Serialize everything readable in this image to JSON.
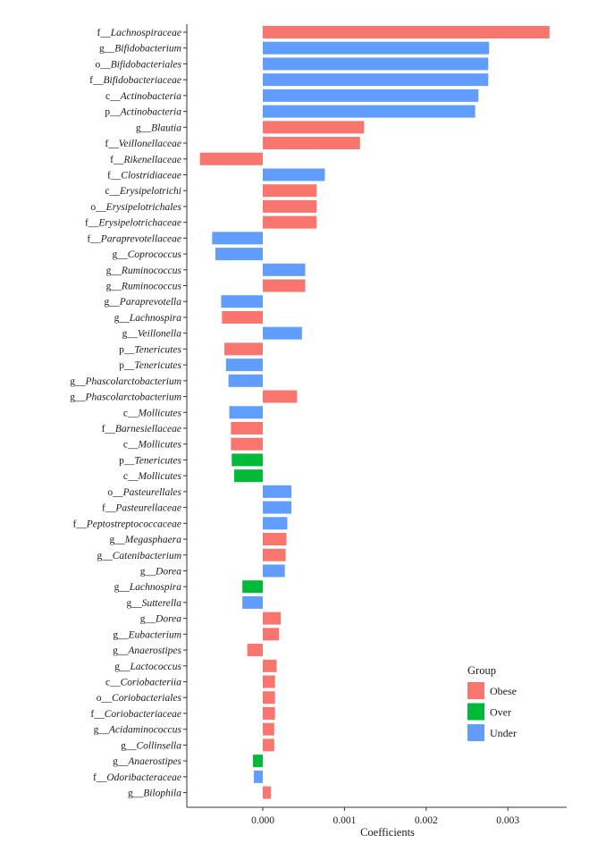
{
  "chart_data": {
    "type": "bar",
    "orientation": "horizontal",
    "xlabel": "Coefficients",
    "xlim": [
      -0.00093,
      0.00372
    ],
    "x_ticks": [
      0.0,
      0.001,
      0.002,
      0.003
    ],
    "x_tick_labels": [
      "0.000",
      "0.001",
      "0.002",
      "0.003"
    ],
    "colors": {
      "Obese": "#f8766d",
      "Over": "#00ba38",
      "Under": "#619cff"
    },
    "legend": {
      "title": "Group",
      "position": "right",
      "entries": [
        {
          "group": "Obese",
          "label": "Obese"
        },
        {
          "group": "Over",
          "label": "Over"
        },
        {
          "group": "Under",
          "label": "Under"
        }
      ]
    },
    "bars": [
      {
        "prefix": "f",
        "taxon": "Lachnospiraceae",
        "value": 0.00351,
        "group": "Obese"
      },
      {
        "prefix": "g",
        "taxon": "Bifidobacterium",
        "value": 0.00277,
        "group": "Under"
      },
      {
        "prefix": "o",
        "taxon": "Bifidobacteriales",
        "value": 0.00276,
        "group": "Under"
      },
      {
        "prefix": "f",
        "taxon": "Bifidobacteriaceae",
        "value": 0.00276,
        "group": "Under"
      },
      {
        "prefix": "c",
        "taxon": "Actinobacteria",
        "value": 0.00264,
        "group": "Under"
      },
      {
        "prefix": "p",
        "taxon": "Actinobacteria",
        "value": 0.0026,
        "group": "Under"
      },
      {
        "prefix": "g",
        "taxon": "Blautia",
        "value": 0.00124,
        "group": "Obese"
      },
      {
        "prefix": "f",
        "taxon": "Veillonellaceae",
        "value": 0.00119,
        "group": "Obese"
      },
      {
        "prefix": "f",
        "taxon": "Rikenellaceae",
        "value": -0.00077,
        "group": "Obese"
      },
      {
        "prefix": "f",
        "taxon": "Clostridiaceae",
        "value": 0.00076,
        "group": "Under"
      },
      {
        "prefix": "c",
        "taxon": "Erysipelotrichi",
        "value": 0.00066,
        "group": "Obese"
      },
      {
        "prefix": "o",
        "taxon": "Erysipelotrichales",
        "value": 0.00066,
        "group": "Obese"
      },
      {
        "prefix": "f",
        "taxon": "Erysipelotrichaceae",
        "value": 0.00066,
        "group": "Obese"
      },
      {
        "prefix": "f",
        "taxon": "Paraprevotellaceae",
        "value": -0.00062,
        "group": "Under"
      },
      {
        "prefix": "g",
        "taxon": "Coprococcus",
        "value": -0.00058,
        "group": "Under"
      },
      {
        "prefix": "g",
        "taxon": "Ruminococcus",
        "value": 0.00052,
        "group": "Under"
      },
      {
        "prefix": "g",
        "taxon": "Ruminococcus",
        "value": 0.00052,
        "group": "Obese"
      },
      {
        "prefix": "g",
        "taxon": "Paraprevotella",
        "value": -0.00051,
        "group": "Under"
      },
      {
        "prefix": "g",
        "taxon": "Lachnospira",
        "value": -0.0005,
        "group": "Obese"
      },
      {
        "prefix": "g",
        "taxon": "Veillonella",
        "value": 0.00048,
        "group": "Under"
      },
      {
        "prefix": "p",
        "taxon": "Tenericutes",
        "value": -0.00047,
        "group": "Obese"
      },
      {
        "prefix": "p",
        "taxon": "Tenericutes",
        "value": -0.00045,
        "group": "Under"
      },
      {
        "prefix": "g",
        "taxon": "Phascolarctobacterium",
        "value": -0.00042,
        "group": "Under"
      },
      {
        "prefix": "g",
        "taxon": "Phascolarctobacterium",
        "value": 0.00042,
        "group": "Obese"
      },
      {
        "prefix": "c",
        "taxon": "Mollicutes",
        "value": -0.00041,
        "group": "Under"
      },
      {
        "prefix": "f",
        "taxon": "Barnesiellaceae",
        "value": -0.00039,
        "group": "Obese"
      },
      {
        "prefix": "c",
        "taxon": "Mollicutes",
        "value": -0.00039,
        "group": "Obese"
      },
      {
        "prefix": "p",
        "taxon": "Tenericutes",
        "value": -0.00038,
        "group": "Over"
      },
      {
        "prefix": "c",
        "taxon": "Mollicutes",
        "value": -0.00035,
        "group": "Over"
      },
      {
        "prefix": "o",
        "taxon": "Pasteurellales",
        "value": 0.00035,
        "group": "Under"
      },
      {
        "prefix": "f",
        "taxon": "Pasteurellaceae",
        "value": 0.00035,
        "group": "Under"
      },
      {
        "prefix": "f",
        "taxon": "Peptostreptococcaceae",
        "value": 0.0003,
        "group": "Under"
      },
      {
        "prefix": "g",
        "taxon": "Megasphaera",
        "value": 0.00029,
        "group": "Obese"
      },
      {
        "prefix": "g",
        "taxon": "Catenibacterium",
        "value": 0.00028,
        "group": "Obese"
      },
      {
        "prefix": "g",
        "taxon": "Dorea",
        "value": 0.00027,
        "group": "Under"
      },
      {
        "prefix": "g",
        "taxon": "Lachnospira",
        "value": -0.00025,
        "group": "Over"
      },
      {
        "prefix": "g",
        "taxon": "Sutterella",
        "value": -0.00025,
        "group": "Under"
      },
      {
        "prefix": "g",
        "taxon": "Dorea",
        "value": 0.00022,
        "group": "Obese"
      },
      {
        "prefix": "g",
        "taxon": "Eubacterium",
        "value": 0.0002,
        "group": "Obese"
      },
      {
        "prefix": "g",
        "taxon": "Anaerostipes",
        "value": -0.00019,
        "group": "Obese"
      },
      {
        "prefix": "g",
        "taxon": "Lactococcus",
        "value": 0.00017,
        "group": "Obese"
      },
      {
        "prefix": "c",
        "taxon": "Coriobacteriia",
        "value": 0.00015,
        "group": "Obese"
      },
      {
        "prefix": "o",
        "taxon": "Coriobacteriales",
        "value": 0.00015,
        "group": "Obese"
      },
      {
        "prefix": "f",
        "taxon": "Coriobacteriaceae",
        "value": 0.00015,
        "group": "Obese"
      },
      {
        "prefix": "g",
        "taxon": "Acidaminococcus",
        "value": 0.00014,
        "group": "Obese"
      },
      {
        "prefix": "g",
        "taxon": "Collinsella",
        "value": 0.00014,
        "group": "Obese"
      },
      {
        "prefix": "g",
        "taxon": "Anaerostipes",
        "value": -0.00012,
        "group": "Over"
      },
      {
        "prefix": "f",
        "taxon": "Odoribacteraceae",
        "value": -0.00011,
        "group": "Under"
      },
      {
        "prefix": "g",
        "taxon": "Bilophila",
        "value": 0.0001,
        "group": "Obese"
      }
    ]
  }
}
